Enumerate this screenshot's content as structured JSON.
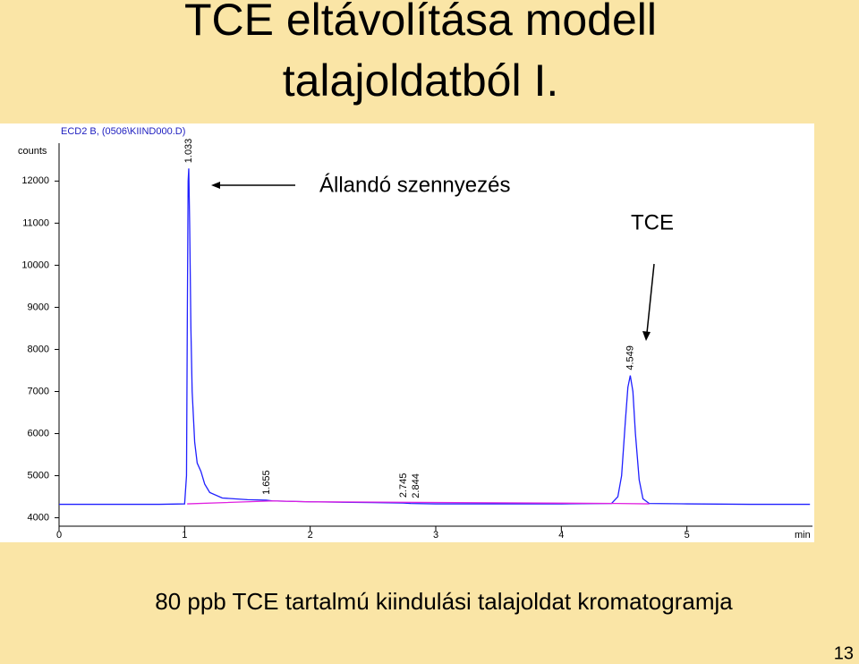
{
  "slide": {
    "title_lines": [
      "TCE eltávolítása modell",
      "talajoldatból I."
    ],
    "caption": "80 ppb TCE tartalmú kiindulási talajoldat kromatogramja",
    "page_number": "13"
  },
  "chart_data": {
    "type": "line",
    "header": "ECD2 B, (0506\\KIIND000.D)",
    "y_label": "counts",
    "x_label": "min",
    "xlim": [
      0,
      6
    ],
    "xticks": [
      0,
      1,
      2,
      3,
      4,
      5
    ],
    "ylim": [
      3800,
      12900
    ],
    "yticks": [
      4000,
      5000,
      6000,
      7000,
      8000,
      9000,
      10000,
      11000,
      12000
    ],
    "series": [
      {
        "color": "#2020ff",
        "x": [
          0.0,
          0.8,
          1.0,
          1.015,
          1.022,
          1.028,
          1.033,
          1.04,
          1.05,
          1.06,
          1.08,
          1.1,
          1.13,
          1.16,
          1.2,
          1.3,
          1.5,
          1.65,
          1.7,
          2.0,
          2.5,
          2.74,
          2.8,
          3.0,
          3.5,
          4.0,
          4.4,
          4.45,
          4.48,
          4.51,
          4.53,
          4.549,
          4.57,
          4.59,
          4.62,
          4.65,
          4.7,
          5.0,
          5.5,
          5.98
        ],
        "values": [
          4320,
          4320,
          4330,
          5000,
          9000,
          12000,
          12300,
          11000,
          8500,
          7000,
          5800,
          5300,
          5100,
          4800,
          4600,
          4470,
          4430,
          4420,
          4400,
          4380,
          4360,
          4350,
          4340,
          4330,
          4330,
          4330,
          4340,
          4500,
          5000,
          6300,
          7100,
          7380,
          7000,
          6000,
          4900,
          4450,
          4340,
          4330,
          4320,
          4320
        ]
      },
      {
        "color": "#e020e0",
        "x": [
          1.02,
          1.7,
          2.0,
          4.45,
          4.7
        ],
        "values": [
          4330,
          4400,
          4380,
          4340,
          4330
        ]
      }
    ],
    "peak_labels": [
      1.033,
      1.655,
      2.745,
      2.844,
      4.549
    ],
    "annotations": [
      "Állandó szennyezés",
      "TCE"
    ]
  }
}
